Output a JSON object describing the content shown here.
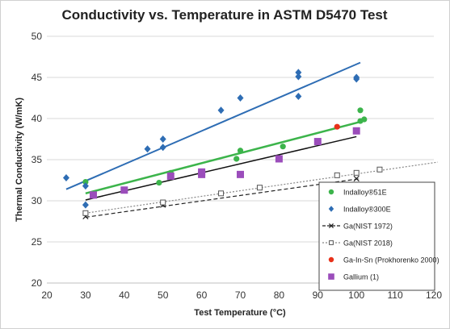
{
  "chart_data": {
    "type": "scatter",
    "title": "Conductivity vs. Temperature in ASTM D5470 Test",
    "xlabel": "Test Temperature (°C)",
    "ylabel": "Thermal Conductivity (W/mK)",
    "xlim": [
      20,
      120
    ],
    "ylim": [
      20,
      50
    ],
    "xticks": [
      20,
      30,
      40,
      50,
      60,
      70,
      80,
      90,
      100,
      110,
      120
    ],
    "yticks": [
      20,
      25,
      30,
      35,
      40,
      45,
      50
    ],
    "grid": "horizontal",
    "legend_position": "bottom-right",
    "series": [
      {
        "name": "Indalloy®51E",
        "marker": "circle",
        "color": "#3cb44b",
        "points": [
          [
            30,
            32.3
          ],
          [
            49,
            32.2
          ],
          [
            52,
            33.4
          ],
          [
            69,
            35.1
          ],
          [
            70,
            36.1
          ],
          [
            81,
            36.6
          ],
          [
            101,
            41.0
          ],
          [
            101,
            39.7
          ],
          [
            102,
            39.9
          ]
        ],
        "trendline": {
          "from": [
            30,
            30.9
          ],
          "to": [
            101,
            39.6
          ],
          "color": "#3cb44b",
          "style": "solid",
          "width": 2.5
        }
      },
      {
        "name": "Indalloy®300E",
        "marker": "diamond",
        "color": "#2e6db4",
        "points": [
          [
            25,
            32.8
          ],
          [
            30,
            31.8
          ],
          [
            30,
            29.5
          ],
          [
            46,
            36.3
          ],
          [
            50,
            37.5
          ],
          [
            50,
            36.5
          ],
          [
            65,
            41.0
          ],
          [
            70,
            42.5
          ],
          [
            85,
            45.6
          ],
          [
            85,
            45.1
          ],
          [
            85,
            42.7
          ],
          [
            100,
            45.0
          ],
          [
            100,
            44.8
          ]
        ],
        "trendline": {
          "from": [
            25,
            31.4
          ],
          "to": [
            101,
            46.8
          ],
          "color": "#2e6db4",
          "style": "solid",
          "width": 2
        }
      },
      {
        "name": "Ga(NIST 1972)",
        "marker": "x",
        "color": "#222222",
        "points": [
          [
            30,
            28.1
          ],
          [
            50,
            29.5
          ],
          [
            100,
            32.7
          ]
        ],
        "trendline": {
          "from": [
            30,
            28.0
          ],
          "to": [
            101,
            32.7
          ],
          "color": "#222222",
          "style": "dashed",
          "width": 1.2
        }
      },
      {
        "name": "Ga(NIST 2018)",
        "marker": "open-square",
        "color": "#555555",
        "points": [
          [
            30,
            28.5
          ],
          [
            50,
            29.8
          ],
          [
            65,
            30.9
          ],
          [
            75,
            31.6
          ],
          [
            95,
            33.1
          ],
          [
            100,
            33.4
          ],
          [
            106,
            33.8
          ]
        ],
        "trendline": {
          "from": [
            30,
            28.5
          ],
          "to": [
            121,
            34.7
          ],
          "color": "#888888",
          "style": "dotted",
          "width": 1.2
        }
      },
      {
        "name": "Ga-In-Sn (Prokhorenko 2000)",
        "marker": "circle",
        "color": "#e8311a",
        "points": [
          [
            95,
            39.0
          ]
        ],
        "trendline": null
      },
      {
        "name": "Gallium (1)",
        "marker": "square",
        "color": "#9b4dbb",
        "points": [
          [
            32,
            30.7
          ],
          [
            40,
            31.3
          ],
          [
            52,
            33.0
          ],
          [
            60,
            33.2
          ],
          [
            60,
            33.5
          ],
          [
            70,
            33.2
          ],
          [
            80,
            35.1
          ],
          [
            90,
            37.2
          ],
          [
            100,
            38.5
          ]
        ],
        "trendline": null
      },
      {
        "name": "",
        "marker": "none",
        "color": "#111111",
        "points": [],
        "trendline": {
          "from": [
            30,
            30.1
          ],
          "to": [
            100,
            37.8
          ],
          "color": "#111111",
          "style": "solid",
          "width": 1.5
        }
      }
    ]
  }
}
